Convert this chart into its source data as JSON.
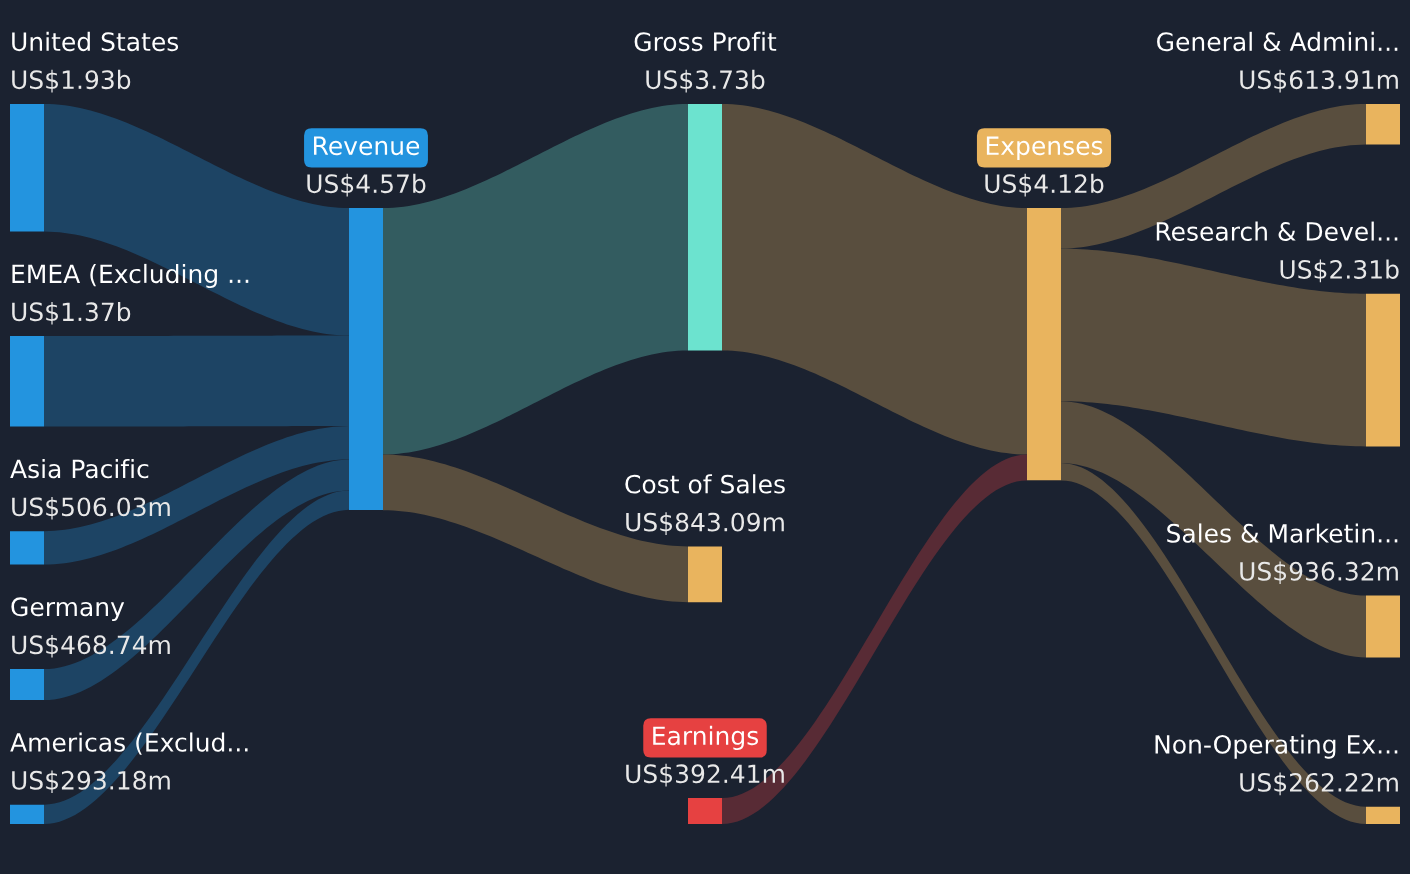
{
  "chart_data": {
    "type": "other",
    "categories": [
      "United States",
      "EMEA (Excluding ...",
      "Asia Pacific",
      "Germany",
      "Americas (Exclud...",
      "Revenue",
      "Gross Profit",
      "Cost of Sales",
      "Earnings",
      "Expenses",
      "General & Admini...",
      "Research & Devel...",
      "Sales & Marketin...",
      "Non-Operating Ex..."
    ],
    "colors": [
      "#2394df",
      "#2394df",
      "#2394df",
      "#2394df",
      "#2394df",
      "#2394df",
      "#6ce3cf",
      "#e9b45e",
      "#e64141",
      "#e9b45e",
      "#e9b45e",
      "#e9b45e",
      "#e9b45e",
      "#e9b45e"
    ],
    "series": [
      {
        "values": [
          1930000000,
          1370000000,
          506030000,
          468740000,
          293180000,
          null,
          null,
          null,
          null,
          null,
          null,
          null,
          null,
          null
        ],
        "value_labels": [
          "US$1.93b",
          "US$1.37b",
          "US$506.03m",
          "US$468.74m",
          "US$293.18m",
          null,
          null,
          null,
          null,
          null,
          null,
          null,
          null,
          null
        ]
      },
      {
        "values": [
          null,
          null,
          null,
          null,
          null,
          4570000000,
          null,
          null,
          null,
          null,
          null,
          null,
          null,
          null
        ],
        "value_labels": [
          null,
          null,
          null,
          null,
          null,
          "US$4.57b",
          null,
          null,
          null,
          null,
          null,
          null,
          null,
          null
        ]
      },
      {
        "values": [
          null,
          null,
          null,
          null,
          null,
          null,
          3730000000,
          843090000,
          392410000,
          null,
          null,
          null,
          null,
          null
        ],
        "value_labels": [
          null,
          null,
          null,
          null,
          null,
          null,
          "US$3.73b",
          "US$843.09m",
          "US$392.41m",
          null,
          null,
          null,
          null,
          null
        ]
      },
      {
        "values": [
          null,
          null,
          null,
          null,
          null,
          null,
          null,
          null,
          null,
          4120000000,
          null,
          null,
          null,
          null
        ],
        "value_labels": [
          null,
          null,
          null,
          null,
          null,
          null,
          null,
          null,
          null,
          "US$4.12b",
          null,
          null,
          null,
          null
        ]
      },
      {
        "values": [
          null,
          null,
          null,
          null,
          null,
          null,
          null,
          null,
          null,
          null,
          613910000,
          2310000000,
          936320000,
          262220000
        ],
        "value_labels": [
          null,
          null,
          null,
          null,
          null,
          null,
          null,
          null,
          null,
          null,
          "US$613.91m",
          "US$2.31b",
          "US$936.32m",
          "US$262.22m"
        ]
      }
    ]
  }
}
